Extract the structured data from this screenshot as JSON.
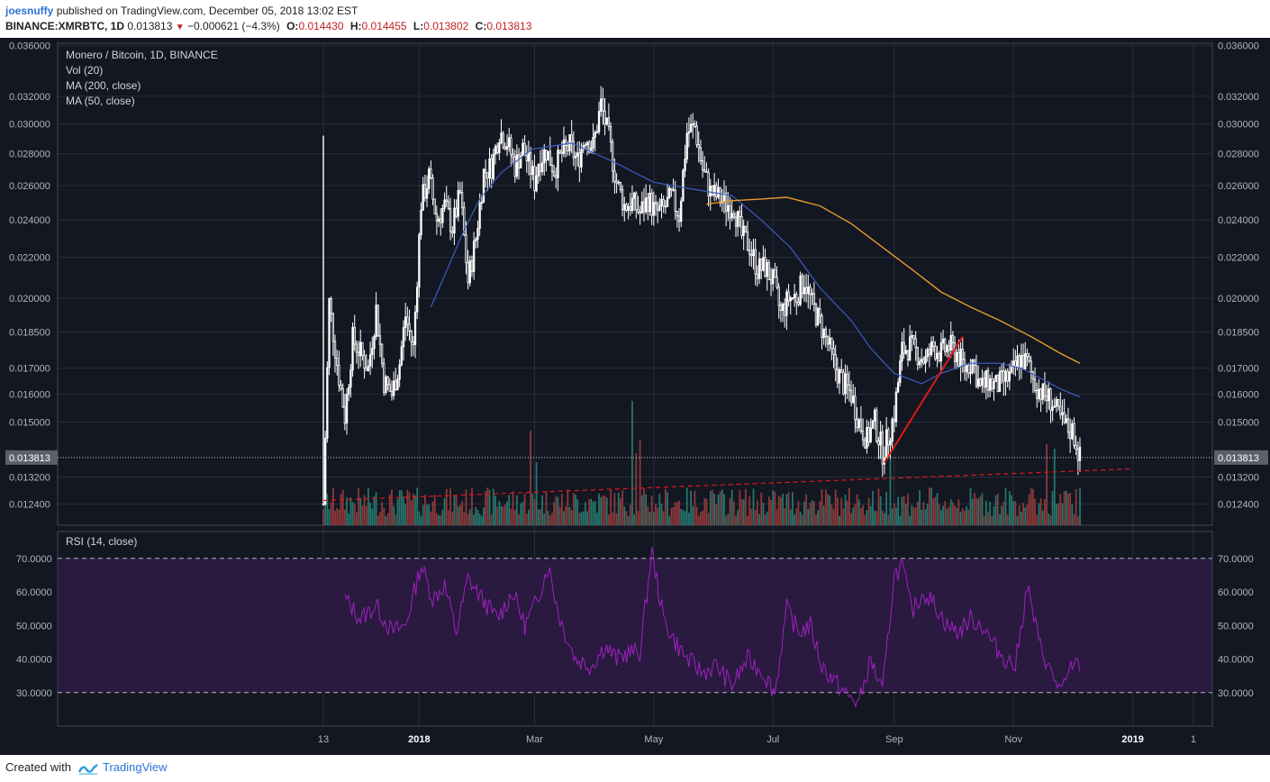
{
  "header": {
    "publisher": "joesnuffy",
    "published_text": "published on TradingView.com, December 05, 2018 13:02 EST",
    "symbol": "BINANCE:XMRBTC, 1D",
    "last": "0.013813",
    "change": "−0.000621 (−4.3%)",
    "o_label": "O:",
    "o": "0.014430",
    "h_label": "H:",
    "h": "0.014455",
    "l_label": "L:",
    "l": "0.013802",
    "c_label": "C:",
    "c": "0.013813"
  },
  "footer": {
    "created": "Created with",
    "brand": "TradingView"
  },
  "colors": {
    "background": "#131722",
    "grid": "#2a2e39",
    "candle": "#ffffff",
    "ma50": "#3b5ec0",
    "ma200": "#e69b2a",
    "vol_up": "#26786e",
    "vol_down": "#8f3a3a",
    "rsi": "#a020c0",
    "rsi_band": "#2a1a40",
    "trend_red": "#e01818"
  },
  "chart_data": [
    {
      "type": "candlestick",
      "title": "Monero / Bitcoin, 1D, BINANCE",
      "legend": [
        "Vol (20)",
        "MA (200, close)",
        "MA (50, close)"
      ],
      "x_ticks": [
        "13",
        "2018",
        "Mar",
        "May",
        "Jul",
        "Sep",
        "Nov",
        "2019",
        "1"
      ],
      "y_scale": "log",
      "ylim": [
        0.0118,
        0.0362
      ],
      "y_ticks": [
        "0.036000",
        "0.032000",
        "0.030000",
        "0.028000",
        "0.026000",
        "0.024000",
        "0.022000",
        "0.020000",
        "0.018500",
        "0.017000",
        "0.016000",
        "0.015000",
        "0.013200",
        "0.012400"
      ],
      "last_price_label": "0.013813",
      "last_price": 0.013813,
      "close_path": {
        "x": [
          "2017-11-13",
          "2017-11-16",
          "2017-11-20",
          "2017-11-24",
          "2017-11-28",
          "2017-12-02",
          "2017-12-06",
          "2017-12-10",
          "2017-12-14",
          "2017-12-18",
          "2017-12-22",
          "2017-12-25",
          "2017-12-29",
          "2018-01-02",
          "2018-01-06",
          "2018-01-10",
          "2018-01-14",
          "2018-01-18",
          "2018-01-22",
          "2018-01-26",
          "2018-01-30",
          "2018-02-03",
          "2018-02-07",
          "2018-02-11",
          "2018-02-15",
          "2018-02-19",
          "2018-02-23",
          "2018-02-27",
          "2018-03-01",
          "2018-03-03",
          "2018-03-07",
          "2018-03-11",
          "2018-03-15",
          "2018-03-19",
          "2018-03-23",
          "2018-03-27",
          "2018-03-31",
          "2018-04-04",
          "2018-04-08",
          "2018-04-12",
          "2018-04-16",
          "2018-04-20",
          "2018-04-24",
          "2018-04-28",
          "2018-05-02",
          "2018-05-06",
          "2018-05-10",
          "2018-05-14",
          "2018-05-18",
          "2018-05-22",
          "2018-05-26",
          "2018-05-30",
          "2018-06-03",
          "2018-06-07",
          "2018-06-11",
          "2018-06-15",
          "2018-06-19",
          "2018-06-23",
          "2018-06-27",
          "2018-07-01",
          "2018-07-05",
          "2018-07-09",
          "2018-07-13",
          "2018-07-17",
          "2018-07-21",
          "2018-07-25",
          "2018-07-29",
          "2018-08-02",
          "2018-08-06",
          "2018-08-10",
          "2018-08-14",
          "2018-08-18",
          "2018-08-22",
          "2018-08-26",
          "2018-08-29",
          "2018-09-01",
          "2018-09-05",
          "2018-09-09",
          "2018-09-13",
          "2018-09-17",
          "2018-09-21",
          "2018-09-25",
          "2018-09-29",
          "2018-10-03",
          "2018-10-07",
          "2018-10-11",
          "2018-10-15",
          "2018-10-19",
          "2018-10-23",
          "2018-10-27",
          "2018-10-31",
          "2018-11-04",
          "2018-11-08",
          "2018-11-12",
          "2018-11-16",
          "2018-11-20",
          "2018-11-24",
          "2018-11-28",
          "2018-12-01",
          "2018-12-03",
          "2018-12-05"
        ],
        "y": [
          0.0124,
          0.0198,
          0.0172,
          0.0152,
          0.0182,
          0.0176,
          0.017,
          0.0195,
          0.0165,
          0.016,
          0.0172,
          0.0192,
          0.0178,
          0.025,
          0.0265,
          0.024,
          0.0248,
          0.0236,
          0.0255,
          0.0208,
          0.023,
          0.0268,
          0.0272,
          0.0295,
          0.0288,
          0.0272,
          0.0283,
          0.027,
          0.0262,
          0.0275,
          0.0282,
          0.027,
          0.028,
          0.0285,
          0.0275,
          0.0292,
          0.0285,
          0.0314,
          0.029,
          0.0262,
          0.0248,
          0.025,
          0.0244,
          0.0252,
          0.0244,
          0.0246,
          0.0253,
          0.0243,
          0.0294,
          0.0298,
          0.027,
          0.0256,
          0.0253,
          0.0249,
          0.0248,
          0.0231,
          0.0226,
          0.0214,
          0.0215,
          0.0208,
          0.0193,
          0.02,
          0.0201,
          0.0209,
          0.0197,
          0.0189,
          0.018,
          0.017,
          0.0164,
          0.016,
          0.015,
          0.0144,
          0.015,
          0.014,
          0.0145,
          0.0153,
          0.0177,
          0.0179,
          0.0176,
          0.0173,
          0.0179,
          0.0176,
          0.0179,
          0.0176,
          0.017,
          0.0173,
          0.0162,
          0.0165,
          0.0163,
          0.0165,
          0.0167,
          0.0174,
          0.0172,
          0.0164,
          0.016,
          0.0158,
          0.0152,
          0.0148,
          0.0147,
          0.0143,
          0.0138
        ]
      },
      "ma50": {
        "x": [
          "2018-01-07",
          "2018-01-15",
          "2018-01-23",
          "2018-02-01",
          "2018-02-12",
          "2018-02-28",
          "2018-03-20",
          "2018-04-10",
          "2018-05-01",
          "2018-05-20",
          "2018-06-10",
          "2018-06-25",
          "2018-07-10",
          "2018-07-25",
          "2018-08-10",
          "2018-08-20",
          "2018-09-01",
          "2018-09-15",
          "2018-09-25",
          "2018-10-10",
          "2018-10-25",
          "2018-11-05",
          "2018-11-15",
          "2018-11-25",
          "2018-12-05"
        ],
        "y": [
          0.0196,
          0.0213,
          0.0232,
          0.0252,
          0.0268,
          0.0283,
          0.0287,
          0.0275,
          0.0262,
          0.0258,
          0.0254,
          0.024,
          0.0225,
          0.0205,
          0.019,
          0.0178,
          0.0168,
          0.0164,
          0.0168,
          0.0172,
          0.0172,
          0.017,
          0.0166,
          0.0162,
          0.0159
        ]
      },
      "ma200": {
        "x": [
          "2018-05-28",
          "2018-06-10",
          "2018-06-25",
          "2018-07-08",
          "2018-07-25",
          "2018-08-10",
          "2018-08-25",
          "2018-09-10",
          "2018-09-25",
          "2018-10-10",
          "2018-10-25",
          "2018-11-10",
          "2018-11-25",
          "2018-12-05"
        ],
        "y": [
          0.0249,
          0.0251,
          0.0252,
          0.0253,
          0.0248,
          0.0238,
          0.0226,
          0.0214,
          0.0203,
          0.0196,
          0.019,
          0.0183,
          0.0176,
          0.0172
        ]
      },
      "volume_trend": {
        "x": [
          "2017-11-13",
          "2018-12-31"
        ],
        "y": [
          0.0125,
          0.01345
        ]
      },
      "red_trendline": {
        "x": [
          "2018-08-27",
          "2018-10-06"
        ],
        "y": [
          0.01365,
          0.0183
        ]
      }
    },
    {
      "type": "line",
      "title": "RSI (14, close)",
      "ylim": [
        20,
        78
      ],
      "y_ticks": [
        "70.0000",
        "60.0000",
        "50.0000",
        "40.0000",
        "30.0000"
      ],
      "band": [
        30,
        70
      ],
      "x": [
        "2017-11-24",
        "2017-12-02",
        "2017-12-10",
        "2017-12-18",
        "2017-12-25",
        "2018-01-02",
        "2018-01-08",
        "2018-01-14",
        "2018-01-20",
        "2018-01-26",
        "2018-02-02",
        "2018-02-10",
        "2018-02-18",
        "2018-02-24",
        "2018-03-02",
        "2018-03-08",
        "2018-03-14",
        "2018-03-22",
        "2018-03-30",
        "2018-04-06",
        "2018-04-12",
        "2018-04-18",
        "2018-04-24",
        "2018-04-30",
        "2018-05-06",
        "2018-05-12",
        "2018-05-18",
        "2018-05-26",
        "2018-06-02",
        "2018-06-10",
        "2018-06-18",
        "2018-06-26",
        "2018-07-02",
        "2018-07-08",
        "2018-07-14",
        "2018-07-20",
        "2018-07-26",
        "2018-08-02",
        "2018-08-08",
        "2018-08-14",
        "2018-08-20",
        "2018-08-26",
        "2018-09-01",
        "2018-09-05",
        "2018-09-10",
        "2018-09-16",
        "2018-09-22",
        "2018-09-28",
        "2018-10-04",
        "2018-10-10",
        "2018-10-16",
        "2018-10-22",
        "2018-10-28",
        "2018-11-02",
        "2018-11-08",
        "2018-11-14",
        "2018-11-20",
        "2018-11-26",
        "2018-12-02",
        "2018-12-05"
      ],
      "values": [
        58,
        52,
        56,
        48,
        50,
        68,
        58,
        62,
        48,
        64,
        58,
        52,
        60,
        50,
        57,
        68,
        52,
        40,
        38,
        44,
        40,
        42,
        42,
        72,
        52,
        45,
        40,
        36,
        38,
        32,
        40,
        36,
        30,
        55,
        48,
        50,
        38,
        33,
        29,
        27,
        40,
        30,
        65,
        68,
        54,
        60,
        56,
        50,
        48,
        52,
        50,
        44,
        40,
        38,
        62,
        45,
        36,
        30,
        40,
        36
      ]
    }
  ]
}
